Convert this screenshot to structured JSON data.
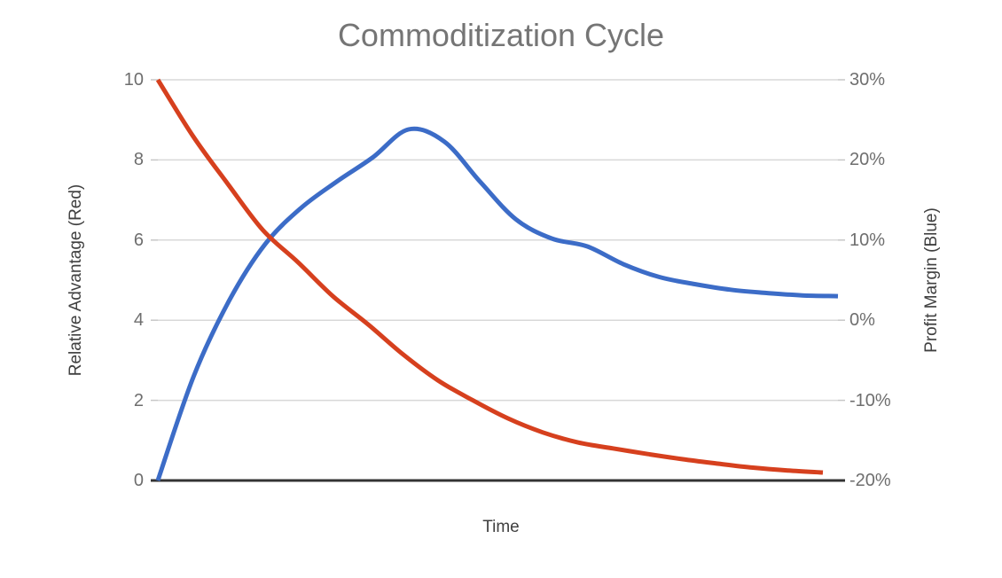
{
  "chart_data": {
    "type": "line",
    "title": "Commoditization Cycle",
    "smooth": true,
    "grid": true,
    "legend": "none",
    "background": "#ffffff",
    "colors": {
      "grid_line": "#d8d8d8",
      "axis_line": "#333333",
      "tick_mark": "#c7c7c7",
      "title_text": "#757575",
      "tick_text": "#6e6e6e",
      "axis_title_text": "#404040",
      "red_series": "#d6401e",
      "blue_series": "#3c6cc7"
    },
    "x_axis": {
      "label": "Time",
      "tick_labels": []
    },
    "left_axis": {
      "label": "Relative Advantage (Red)",
      "range": [
        0,
        10
      ],
      "ticks": [
        "10",
        "8",
        "6",
        "4",
        "2",
        "0"
      ]
    },
    "right_axis": {
      "label": "Profit Margin (Blue)",
      "range": [
        -20,
        30
      ],
      "ticks": [
        "30%",
        "20%",
        "10%",
        "0%",
        "-10%",
        "-20%"
      ]
    },
    "x": [
      1,
      2,
      3,
      4,
      5,
      6,
      7,
      8,
      9,
      10,
      11,
      12,
      13,
      14,
      15,
      16,
      17,
      18,
      19,
      20
    ],
    "series": [
      {
        "name": "Relative Advantage (Red)",
        "axis": "left",
        "color": "#d6401e",
        "values": [
          10,
          8.6,
          7.4,
          6.25,
          5.45,
          4.6,
          3.9,
          3.15,
          2.5,
          2,
          1.55,
          1.2,
          0.95,
          0.8,
          0.66,
          0.53,
          0.42,
          0.32,
          0.25,
          0.2
        ]
      },
      {
        "name": "Profit Margin (Blue)",
        "axis": "right",
        "color": "#3c6cc7",
        "values": [
          -20,
          -7,
          2.5,
          9.5,
          14,
          17.3,
          20.3,
          23.8,
          22.3,
          17.3,
          12.6,
          10.2,
          9.2,
          7,
          5.4,
          4.5,
          3.8,
          3.4,
          3.1,
          3
        ]
      }
    ]
  }
}
